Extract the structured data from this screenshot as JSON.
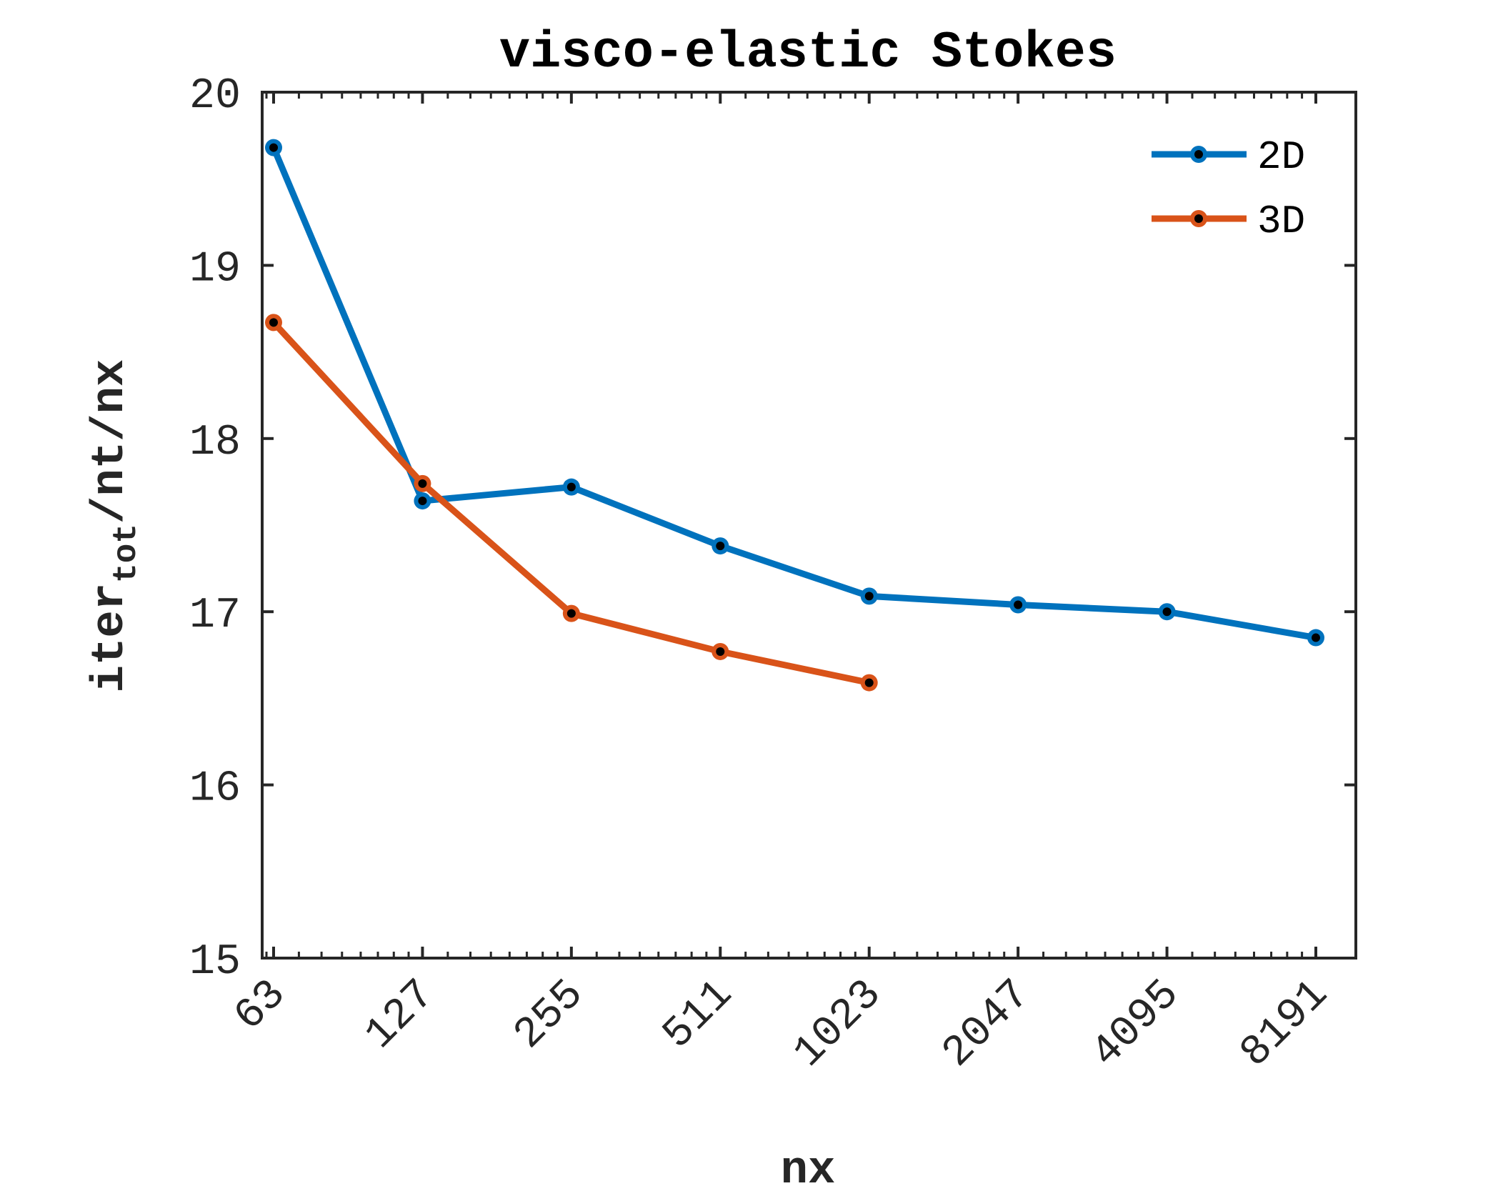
{
  "chart_data": {
    "type": "line",
    "title": "visco-elastic Stokes",
    "xlabel": "nx",
    "ylabel_main": "iter",
    "ylabel_sub": "tot",
    "ylabel_rest": "/nt/nx",
    "x_scale": "log2",
    "x": [
      63,
      127,
      255,
      511,
      1023,
      2047,
      4095,
      8191
    ],
    "xtick_labels": [
      "63",
      "127",
      "255",
      "511",
      "1023",
      "2047",
      "4095",
      "8191"
    ],
    "ylim": [
      15,
      20
    ],
    "yticks": [
      15,
      16,
      17,
      18,
      19,
      20
    ],
    "legend_position": "top-right",
    "series": [
      {
        "name": "2D",
        "color": "#0072BD",
        "x": [
          63,
          127,
          255,
          511,
          1023,
          2047,
          4095,
          8191
        ],
        "values": [
          19.68,
          17.64,
          17.72,
          17.38,
          17.09,
          17.04,
          17.0,
          16.85
        ]
      },
      {
        "name": "3D",
        "color": "#D95319",
        "x": [
          63,
          127,
          255,
          511,
          1023
        ],
        "values": [
          18.67,
          17.74,
          16.99,
          16.77,
          16.59
        ]
      }
    ]
  }
}
